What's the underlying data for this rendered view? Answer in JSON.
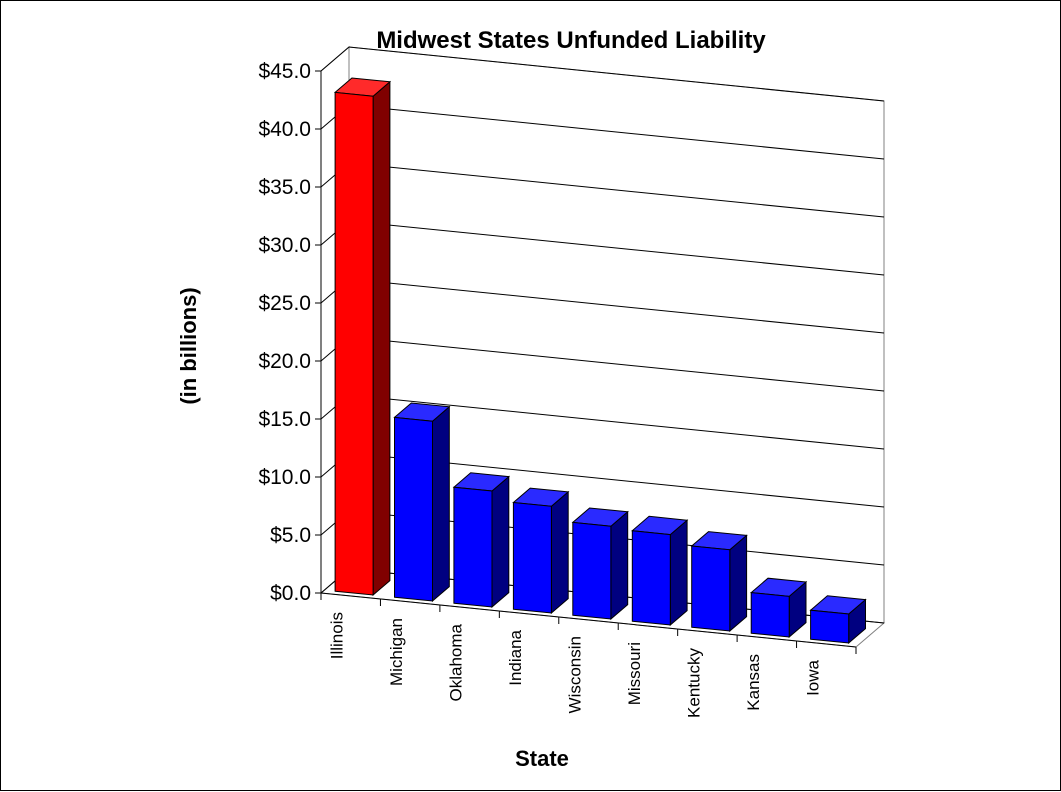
{
  "chart_data": {
    "type": "bar",
    "title": "Midwest States Unfunded Liability",
    "xlabel": "State",
    "ylabel": "(in billions)",
    "categories": [
      "Illinois",
      "Michigan",
      "Oklahoma",
      "Indiana",
      "Wisconsin",
      "Missouri",
      "Kentucky",
      "Kansas",
      "Iowa"
    ],
    "values": [
      43.0,
      15.5,
      10.0,
      9.2,
      8.0,
      7.8,
      7.0,
      3.5,
      2.5
    ],
    "ylim": [
      0,
      45
    ],
    "yticks": [
      "$0.0",
      "$5.0",
      "$10.0",
      "$15.0",
      "$20.0",
      "$25.0",
      "$30.0",
      "$35.0",
      "$40.0",
      "$45.0"
    ],
    "grid": true,
    "legend": "none",
    "colors": {
      "highlight_front": "#ff0000",
      "highlight_top": "#ff2a2a",
      "highlight_side": "#800000",
      "bar_front": "#0000ff",
      "bar_top": "#2a2aff",
      "bar_side": "#000080"
    }
  }
}
